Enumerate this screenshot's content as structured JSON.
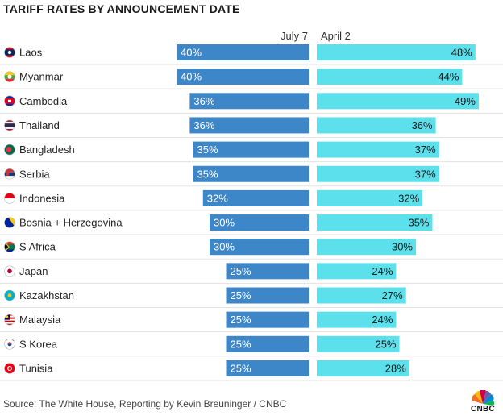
{
  "title": "TARIFF RATES BY ANNOUNCEMENT DATE",
  "source": "Source: The White House, Reporting by Kevin Breuninger / CNBC",
  "logo_text": "CNBC",
  "colors": {
    "july": "#3d86c8",
    "april": "#5ce0ec",
    "row_line": "#e3e3e3"
  },
  "chart_data": {
    "type": "bar",
    "series": [
      {
        "name": "July 7",
        "values": [
          40,
          40,
          36,
          36,
          35,
          35,
          32,
          30,
          30,
          25,
          25,
          25,
          25,
          25
        ]
      },
      {
        "name": "April 2",
        "values": [
          48,
          44,
          49,
          36,
          37,
          37,
          32,
          35,
          30,
          24,
          27,
          24,
          25,
          28
        ]
      }
    ],
    "categories": [
      "Laos",
      "Myanmar",
      "Cambodia",
      "Thailand",
      "Bangladesh",
      "Serbia",
      "Indonesia",
      "Bosnia + Herzegovina",
      "S Africa",
      "Japan",
      "Kazakhstan",
      "Malaysia",
      "S Korea",
      "Tunisia"
    ],
    "flag_icons": [
      "laos-flag-icon",
      "myanmar-flag-icon",
      "cambodia-flag-icon",
      "thailand-flag-icon",
      "bangladesh-flag-icon",
      "serbia-flag-icon",
      "indonesia-flag-icon",
      "bosnia-herzegovina-flag-icon",
      "south-africa-flag-icon",
      "japan-flag-icon",
      "kazakhstan-flag-icon",
      "malaysia-flag-icon",
      "south-korea-flag-icon",
      "tunisia-flag-icon"
    ],
    "value_suffix": "%",
    "xlim": [
      0,
      50
    ]
  }
}
